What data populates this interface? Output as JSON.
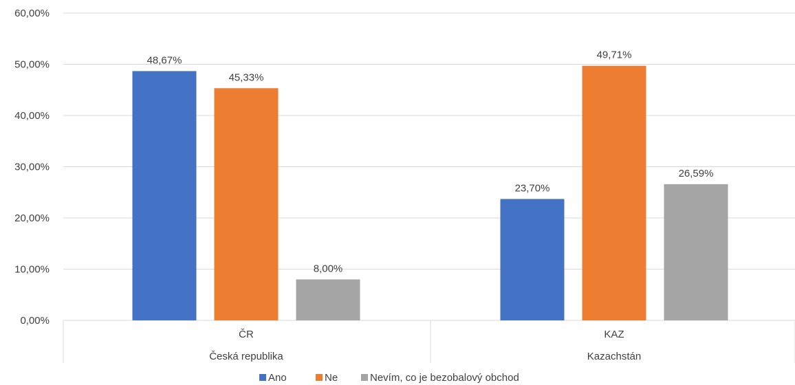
{
  "chart_data": {
    "type": "bar",
    "title": "",
    "xlabel": "",
    "ylabel": "",
    "ylim": [
      0,
      60
    ],
    "yticks": [
      "0,00%",
      "10,00%",
      "20,00%",
      "30,00%",
      "40,00%",
      "50,00%",
      "60,00%"
    ],
    "ytick_values": [
      0,
      10,
      20,
      30,
      40,
      50,
      60
    ],
    "grid": true,
    "legend_position": "bottom",
    "categories": [
      "ČR",
      "KAZ"
    ],
    "category_groups": [
      "Česká republika",
      "Kazachstán"
    ],
    "series": [
      {
        "name": "Ano",
        "color": "#4472C4",
        "values": [
          48.67,
          23.7
        ],
        "labels": [
          "48,67%",
          "23,70%"
        ]
      },
      {
        "name": "Ne",
        "color": "#ED7D31",
        "values": [
          45.33,
          49.71
        ],
        "labels": [
          "45,33%",
          "49,71%"
        ]
      },
      {
        "name": "Nevím, co je bezobalový obchod",
        "color": "#A5A5A5",
        "values": [
          8.0,
          26.59
        ],
        "labels": [
          "8,00%",
          "26,59%"
        ]
      }
    ]
  }
}
